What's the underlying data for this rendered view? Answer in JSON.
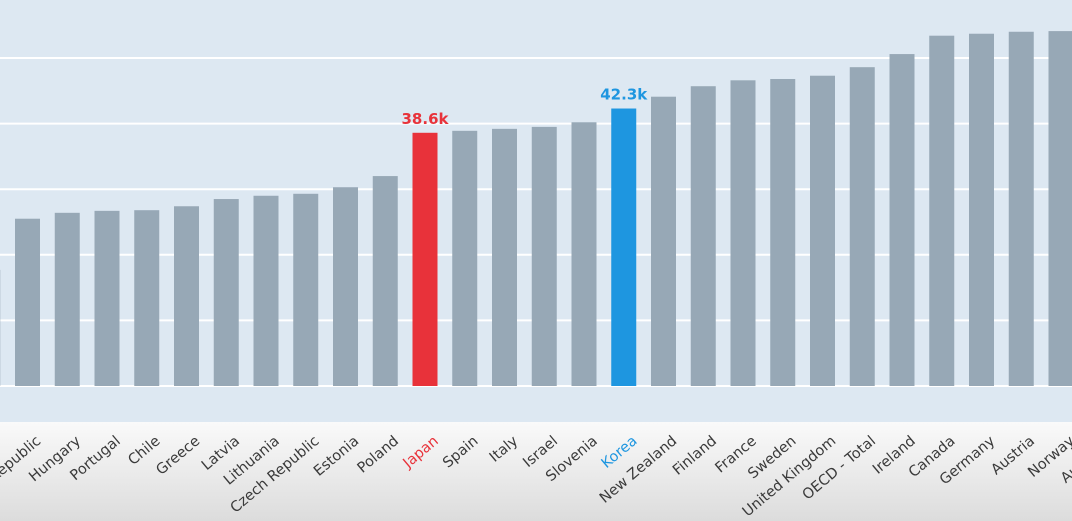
{
  "chart_data": {
    "type": "bar",
    "title": "",
    "xlabel": "",
    "ylabel": "",
    "ylim": [
      0,
      56
    ],
    "grid": true,
    "gridlines": [
      0,
      10,
      20,
      30,
      40,
      50
    ],
    "categories": [
      "",
      "Slovak Republic",
      "Hungary",
      "Portugal",
      "Chile",
      "Greece",
      "Latvia",
      "Lithuania",
      "Czech Republic",
      "Estonia",
      "Poland",
      "Japan",
      "Spain",
      "Italy",
      "Israel",
      "Slovenia",
      "Korea",
      "New Zealand",
      "Finland",
      "France",
      "Sweden",
      "United Kingdom",
      "OECD - Total",
      "Ireland",
      "Canada",
      "Germany",
      "Austria",
      "Norway",
      "Australia"
    ],
    "values": [
      17.7,
      25.5,
      26.4,
      26.7,
      26.8,
      27.4,
      28.5,
      29.0,
      29.3,
      30.3,
      32.0,
      38.6,
      38.9,
      39.2,
      39.5,
      40.2,
      42.3,
      44.1,
      45.7,
      46.6,
      46.8,
      47.3,
      48.6,
      50.6,
      53.4,
      53.7,
      54.0,
      54.1,
      54.5
    ],
    "highlights": [
      {
        "category": "Japan",
        "label": "38.6k",
        "color": "#e8323a"
      },
      {
        "category": "Korea",
        "label": "42.3k",
        "color": "#1e96e0"
      }
    ],
    "colors": {
      "bar": "#97a8b6",
      "background": "#dde8f2",
      "grid": "#ffffff",
      "label_text": "#3a3a3a"
    }
  }
}
